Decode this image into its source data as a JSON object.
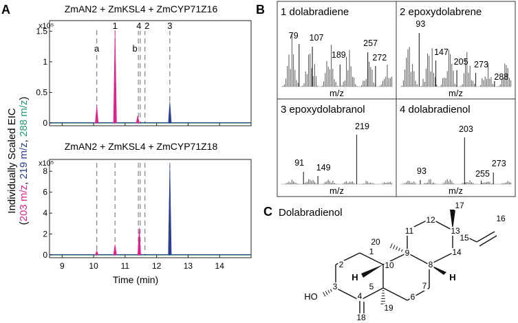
{
  "panels": {
    "A": {
      "letter": "A",
      "y_label_parts": [
        "(",
        "203 m/z",
        ", ",
        "219 m/z",
        ", ",
        "288 m/z",
        ")"
      ],
      "y_label_main": "Individually Scaled EIC",
      "x_label": "Time (min)",
      "peak_markers": [
        {
          "label": "a",
          "x": 10.1
        },
        {
          "label": "1",
          "x": 10.68
        },
        {
          "label": "b",
          "x": 11.42
        },
        {
          "label": "4",
          "x": 11.48
        },
        {
          "label": "2",
          "x": 11.63
        },
        {
          "label": "3",
          "x": 12.42
        }
      ],
      "traces": [
        {
          "title": "ZmAN2 + ZmKSL4 + ZmCYP71Z16",
          "multiplier": "x10⁵",
          "y_ticks": [
            "0",
            "0.5",
            "1",
            "1.5"
          ],
          "ylim": [
            0,
            1.65
          ],
          "peaks": [
            {
              "x": 10.1,
              "height": 0.28,
              "color": "#e0218a"
            },
            {
              "x": 10.68,
              "height": 1.52,
              "color": "#e0218a"
            },
            {
              "x": 11.4,
              "height": 0.12,
              "color": "#e0218a"
            },
            {
              "x": 12.42,
              "height": 0.35,
              "color": "#2c3e94"
            }
          ]
        },
        {
          "title": "ZmAN2 + ZmKSL4 + ZmCYP71Z18",
          "multiplier": "x10⁵",
          "y_ticks": [
            "0",
            "2",
            "4",
            "6",
            "8"
          ],
          "ylim": [
            0,
            9
          ],
          "peaks": [
            {
              "x": 10.1,
              "height": 0.4,
              "color": "#e0218a"
            },
            {
              "x": 10.68,
              "height": 1.0,
              "color": "#e0218a"
            },
            {
              "x": 11.45,
              "height": 2.6,
              "color": "#e0218a"
            },
            {
              "x": 12.42,
              "height": 8.6,
              "color": "#2c3e94"
            }
          ]
        }
      ],
      "x_ticks": [
        "9",
        "10",
        "11",
        "12",
        "13",
        "14"
      ]
    },
    "B": {
      "letter": "B",
      "spectra": [
        {
          "title": "1 dolabradiene",
          "xlabel": "m/z",
          "peaks": [
            "79",
            "107",
            "189",
            "257",
            "272"
          ]
        },
        {
          "title": "2 epoxydolabrene",
          "xlabel": "m/z",
          "peaks": [
            "93",
            "147",
            "205",
            "273",
            "288"
          ]
        },
        {
          "title": "3 epoxydolabranol",
          "xlabel": "m/z",
          "peaks": [
            "91",
            "149",
            "219"
          ]
        },
        {
          "title": "4 dolabradienol",
          "xlabel": "m/z",
          "peaks": [
            "93",
            "203",
            "255",
            "273"
          ]
        }
      ]
    },
    "C": {
      "letter": "C",
      "title": "Dolabradienol",
      "atoms": [
        "1",
        "2",
        "3",
        "4",
        "5",
        "6",
        "7",
        "8",
        "9",
        "10",
        "11",
        "12",
        "13",
        "14",
        "15",
        "16",
        "17",
        "18",
        "19",
        "20"
      ],
      "labels": {
        "oh": "HO",
        "h1": "H",
        "h2": "H"
      }
    }
  },
  "colors": {
    "magenta": "#e0218a",
    "blue": "#2c3e94",
    "green": "#1f9e6b"
  }
}
